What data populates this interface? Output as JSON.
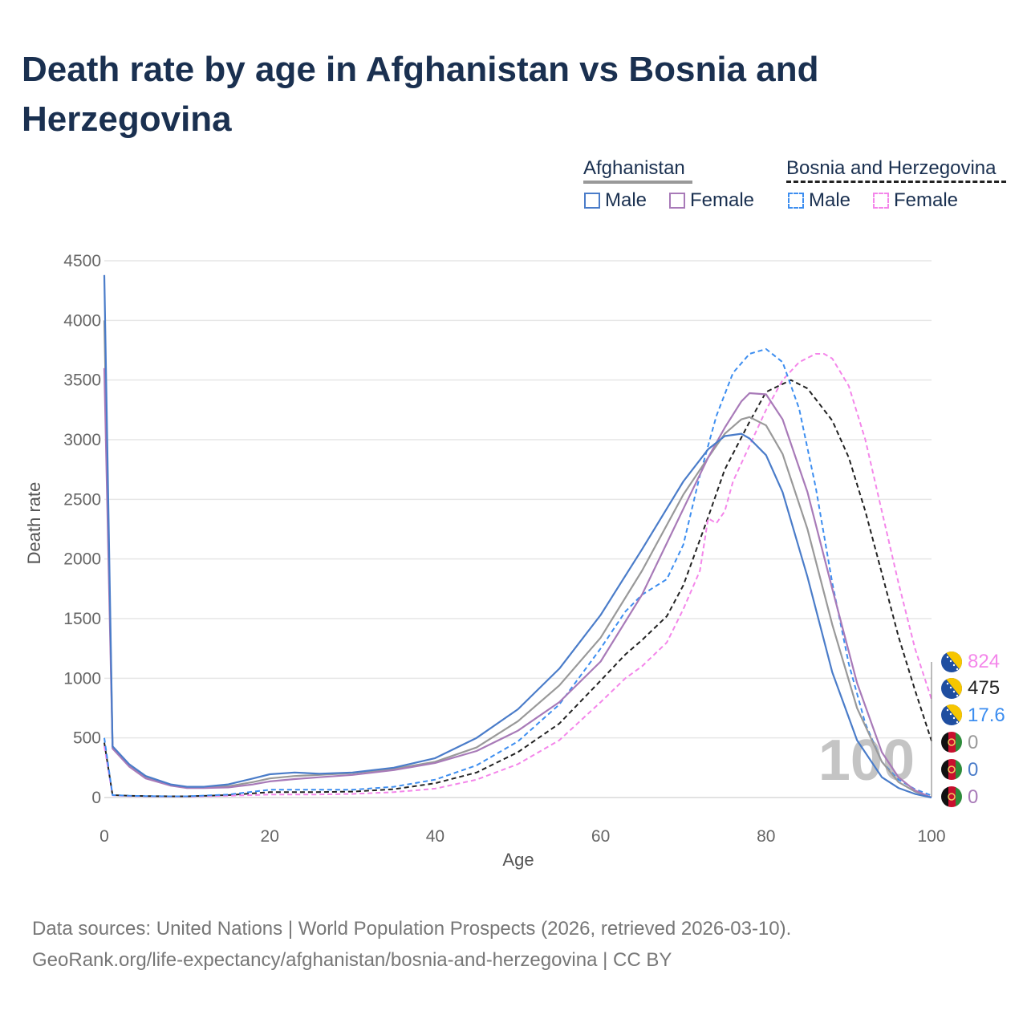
{
  "title": "Death rate by age in Afghanistan vs Bosnia and Herzegovina",
  "legend": {
    "groups": [
      {
        "label": "Afghanistan",
        "line_color": "#999999",
        "line_style": "solid"
      },
      {
        "label": "Bosnia and Herzegovina",
        "line_color": "#222222",
        "line_style": "dashed"
      }
    ],
    "items": [
      {
        "label": "Male",
        "color": "#4a7cc9",
        "style": "solid"
      },
      {
        "label": "Female",
        "color": "#a87ab8",
        "style": "solid"
      },
      {
        "label": "Male",
        "color": "#3d8ef0",
        "style": "dashed"
      },
      {
        "label": "Female",
        "color": "#f486ea",
        "style": "dashed"
      }
    ]
  },
  "year_label": "100",
  "end_labels": [
    {
      "country": "Bosnia and Herzegovina",
      "series": "Female",
      "text": "824",
      "color": "#f486ea",
      "flag": "ba"
    },
    {
      "country": "Bosnia and Herzegovina",
      "series": "Total",
      "text": "475",
      "color": "#222222",
      "flag": "ba"
    },
    {
      "country": "Bosnia and Herzegovina",
      "series": "Male",
      "text": "17.6",
      "color": "#3d8ef0",
      "flag": "ba"
    },
    {
      "country": "Afghanistan",
      "series": "Total",
      "text": "0",
      "color": "#999999",
      "flag": "af"
    },
    {
      "country": "Afghanistan",
      "series": "Male",
      "text": "0",
      "color": "#4a7cc9",
      "flag": "af"
    },
    {
      "country": "Afghanistan",
      "series": "Female",
      "text": "0",
      "color": "#a87ab8",
      "flag": "af"
    }
  ],
  "footer": {
    "line1": "Data sources: United Nations | World Population Prospects (2026, retrieved 2026-03-10).",
    "line2": "GeoRank.org/life-expectancy/afghanistan/bosnia-and-herzegovina | CC BY"
  },
  "chart_data": {
    "type": "line",
    "title": "Death rate by age in Afghanistan vs Bosnia and Herzegovina",
    "xlabel": "Age",
    "ylabel": "Death rate",
    "xlim": [
      0,
      100
    ],
    "ylim": [
      0,
      4500
    ],
    "xticks": [
      0,
      20,
      40,
      60,
      80,
      100
    ],
    "yticks": [
      0,
      500,
      1000,
      1500,
      2000,
      2500,
      3000,
      3500,
      4000,
      4500
    ],
    "grid": true,
    "series": [
      {
        "name": "Afghanistan Total",
        "color": "#999999",
        "dash": "solid",
        "x": [
          0,
          1,
          3,
          5,
          8,
          10,
          12,
          15,
          18,
          20,
          23,
          26,
          30,
          35,
          40,
          45,
          50,
          55,
          60,
          65,
          70,
          73,
          75,
          77,
          78,
          80,
          82,
          85,
          88,
          91,
          94,
          96,
          98,
          100
        ],
        "y": [
          4000,
          420,
          270,
          170,
          105,
          85,
          85,
          95,
          130,
          160,
          180,
          190,
          205,
          240,
          300,
          420,
          640,
          940,
          1340,
          1900,
          2540,
          2850,
          3050,
          3170,
          3190,
          3120,
          2880,
          2250,
          1450,
          750,
          300,
          130,
          50,
          0
        ]
      },
      {
        "name": "Afghanistan Male",
        "color": "#4a7cc9",
        "dash": "solid",
        "x": [
          0,
          1,
          3,
          5,
          8,
          10,
          12,
          15,
          18,
          20,
          23,
          26,
          30,
          35,
          40,
          45,
          50,
          55,
          60,
          65,
          70,
          73,
          75,
          77,
          78,
          80,
          82,
          85,
          88,
          91,
          94,
          96,
          98,
          100
        ],
        "y": [
          4380,
          430,
          280,
          180,
          110,
          90,
          90,
          110,
          160,
          195,
          210,
          200,
          210,
          250,
          330,
          500,
          740,
          1080,
          1530,
          2080,
          2650,
          2920,
          3030,
          3050,
          3010,
          2870,
          2560,
          1850,
          1050,
          480,
          170,
          80,
          30,
          0
        ]
      },
      {
        "name": "Afghanistan Female",
        "color": "#a87ab8",
        "dash": "solid",
        "x": [
          0,
          1,
          3,
          5,
          8,
          10,
          12,
          15,
          18,
          20,
          23,
          26,
          30,
          35,
          40,
          45,
          50,
          55,
          60,
          65,
          70,
          73,
          75,
          77,
          78,
          80,
          82,
          85,
          88,
          91,
          94,
          96,
          98,
          100
        ],
        "y": [
          3600,
          410,
          260,
          160,
          100,
          80,
          80,
          85,
          110,
          135,
          155,
          170,
          190,
          230,
          290,
          390,
          560,
          800,
          1140,
          1700,
          2420,
          2850,
          3100,
          3320,
          3390,
          3380,
          3170,
          2560,
          1750,
          960,
          380,
          170,
          60,
          0
        ]
      },
      {
        "name": "Bosnia and Herzegovina Total",
        "color": "#222222",
        "dash": "dashed",
        "x": [
          0,
          1,
          3,
          5,
          8,
          10,
          15,
          20,
          25,
          30,
          35,
          40,
          45,
          50,
          55,
          60,
          63,
          65,
          68,
          70,
          73,
          75,
          78,
          80,
          83,
          85,
          88,
          90,
          92,
          94,
          96,
          98,
          100
        ],
        "y": [
          460,
          20,
          15,
          12,
          10,
          10,
          20,
          45,
          45,
          50,
          70,
          120,
          210,
          380,
          620,
          980,
          1200,
          1320,
          1520,
          1780,
          2350,
          2750,
          3150,
          3400,
          3500,
          3430,
          3160,
          2850,
          2400,
          1880,
          1350,
          900,
          475
        ]
      },
      {
        "name": "Bosnia and Herzegovina Male",
        "color": "#3d8ef0",
        "dash": "dashed",
        "x": [
          0,
          1,
          3,
          5,
          8,
          10,
          15,
          20,
          25,
          30,
          35,
          40,
          45,
          50,
          55,
          60,
          63,
          65,
          68,
          70,
          72,
          74,
          76,
          78,
          80,
          82,
          84,
          86,
          88,
          90,
          92,
          94,
          96,
          98,
          100
        ],
        "y": [
          500,
          20,
          15,
          12,
          10,
          10,
          25,
          65,
          65,
          65,
          90,
          150,
          270,
          470,
          780,
          1250,
          1560,
          1700,
          1830,
          2120,
          2700,
          3200,
          3560,
          3720,
          3760,
          3650,
          3260,
          2600,
          1800,
          1120,
          620,
          300,
          150,
          70,
          17.6
        ]
      },
      {
        "name": "Bosnia and Herzegovina Female",
        "color": "#f486ea",
        "dash": "dashed",
        "x": [
          0,
          1,
          3,
          5,
          8,
          10,
          15,
          20,
          25,
          30,
          35,
          40,
          45,
          50,
          55,
          60,
          63,
          65,
          68,
          70,
          72,
          73,
          74,
          75,
          76,
          78,
          80,
          82,
          84,
          86,
          87,
          88,
          90,
          92,
          94,
          96,
          98,
          100
        ],
        "y": [
          430,
          18,
          12,
          10,
          8,
          8,
          15,
          25,
          25,
          30,
          45,
          75,
          150,
          280,
          480,
          800,
          1000,
          1100,
          1300,
          1580,
          1900,
          2340,
          2300,
          2400,
          2650,
          2950,
          3250,
          3500,
          3650,
          3720,
          3720,
          3680,
          3450,
          3000,
          2400,
          1800,
          1250,
          824
        ]
      }
    ]
  }
}
